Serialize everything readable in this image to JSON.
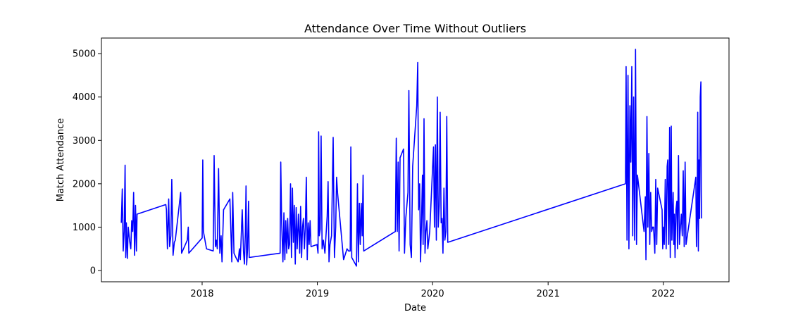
{
  "chart_data": {
    "type": "line",
    "title": "Attendance Over Time Without Outliers",
    "xlabel": "Date",
    "ylabel": "Match Attendance",
    "x_ticks": [
      "2018",
      "2019",
      "2020",
      "2021",
      "2022"
    ],
    "y_ticks": [
      0,
      1000,
      2000,
      3000,
      4000,
      5000
    ],
    "xlim": [
      "2017-02-16",
      "2022-07-28"
    ],
    "ylim": [
      -260,
      5360
    ],
    "grid": false,
    "line_color": "#0000ff",
    "series": [
      {
        "name": "",
        "points": [
          [
            "2017-04-20",
            1100
          ],
          [
            "2017-04-23",
            1880
          ],
          [
            "2017-04-26",
            450
          ],
          [
            "2017-04-29",
            900
          ],
          [
            "2017-05-02",
            2430
          ],
          [
            "2017-05-04",
            300
          ],
          [
            "2017-05-06",
            1100
          ],
          [
            "2017-05-09",
            280
          ],
          [
            "2017-05-12",
            1000
          ],
          [
            "2017-05-16",
            700
          ],
          [
            "2017-05-20",
            500
          ],
          [
            "2017-05-23",
            1150
          ],
          [
            "2017-05-26",
            900
          ],
          [
            "2017-05-29",
            1800
          ],
          [
            "2017-06-01",
            350
          ],
          [
            "2017-06-04",
            1500
          ],
          [
            "2017-06-07",
            450
          ],
          [
            "2017-06-09",
            1300
          ],
          [
            "2017-09-08",
            1520
          ],
          [
            "2017-09-10",
            1400
          ],
          [
            "2017-09-13",
            500
          ],
          [
            "2017-09-17",
            1650
          ],
          [
            "2017-09-20",
            550
          ],
          [
            "2017-09-24",
            800
          ],
          [
            "2017-09-27",
            2100
          ],
          [
            "2017-10-01",
            350
          ],
          [
            "2017-10-05",
            650
          ],
          [
            "2017-10-08",
            700
          ],
          [
            "2017-10-25",
            1800
          ],
          [
            "2017-10-28",
            400
          ],
          [
            "2017-11-15",
            700
          ],
          [
            "2017-11-18",
            1000
          ],
          [
            "2017-11-20",
            400
          ],
          [
            "2018-01-01",
            750
          ],
          [
            "2018-01-03",
            2550
          ],
          [
            "2018-01-05",
            900
          ],
          [
            "2018-01-15",
            500
          ],
          [
            "2018-02-05",
            450
          ],
          [
            "2018-02-08",
            2650
          ],
          [
            "2018-02-12",
            550
          ],
          [
            "2018-02-15",
            700
          ],
          [
            "2018-02-18",
            500
          ],
          [
            "2018-02-22",
            2350
          ],
          [
            "2018-02-26",
            400
          ],
          [
            "2018-03-02",
            800
          ],
          [
            "2018-03-05",
            200
          ],
          [
            "2018-03-10",
            1400
          ],
          [
            "2018-03-30",
            1650
          ],
          [
            "2018-04-02",
            900
          ],
          [
            "2018-04-05",
            200
          ],
          [
            "2018-04-08",
            1800
          ],
          [
            "2018-04-12",
            400
          ],
          [
            "2018-04-18",
            300
          ],
          [
            "2018-04-25",
            200
          ],
          [
            "2018-04-29",
            500
          ],
          [
            "2018-05-02",
            250
          ],
          [
            "2018-05-08",
            1400
          ],
          [
            "2018-05-12",
            450
          ],
          [
            "2018-05-15",
            150
          ],
          [
            "2018-05-18",
            900
          ],
          [
            "2018-05-20",
            1950
          ],
          [
            "2018-05-22",
            130
          ],
          [
            "2018-05-25",
            500
          ],
          [
            "2018-05-28",
            1600
          ],
          [
            "2018-05-30",
            300
          ],
          [
            "2018-09-05",
            400
          ],
          [
            "2018-09-07",
            2500
          ],
          [
            "2018-09-10",
            1100
          ],
          [
            "2018-09-14",
            200
          ],
          [
            "2018-09-17",
            1330
          ],
          [
            "2018-09-20",
            250
          ],
          [
            "2018-09-23",
            1150
          ],
          [
            "2018-09-26",
            400
          ],
          [
            "2018-09-29",
            1200
          ],
          [
            "2018-10-02",
            500
          ],
          [
            "2018-10-05",
            600
          ],
          [
            "2018-10-08",
            2000
          ],
          [
            "2018-10-11",
            300
          ],
          [
            "2018-10-14",
            1900
          ],
          [
            "2018-10-17",
            650
          ],
          [
            "2018-10-20",
            1500
          ],
          [
            "2018-10-23",
            150
          ],
          [
            "2018-10-26",
            1450
          ],
          [
            "2018-10-29",
            500
          ],
          [
            "2018-11-02",
            1300
          ],
          [
            "2018-11-06",
            400
          ],
          [
            "2018-11-09",
            1480
          ],
          [
            "2018-11-12",
            300
          ],
          [
            "2018-11-15",
            1000
          ],
          [
            "2018-11-18",
            1200
          ],
          [
            "2018-11-21",
            500
          ],
          [
            "2018-11-24",
            1000
          ],
          [
            "2018-11-27",
            2150
          ],
          [
            "2018-11-30",
            250
          ],
          [
            "2018-12-03",
            1100
          ],
          [
            "2018-12-06",
            600
          ],
          [
            "2018-12-09",
            1150
          ],
          [
            "2018-12-12",
            550
          ],
          [
            "2018-12-31",
            600
          ],
          [
            "2019-01-03",
            400
          ],
          [
            "2019-01-05",
            3200
          ],
          [
            "2019-01-07",
            800
          ],
          [
            "2019-01-10",
            950
          ],
          [
            "2019-01-13",
            3100
          ],
          [
            "2019-01-16",
            500
          ],
          [
            "2019-01-20",
            700
          ],
          [
            "2019-01-25",
            400
          ],
          [
            "2019-02-01",
            1250
          ],
          [
            "2019-02-04",
            2050
          ],
          [
            "2019-02-07",
            200
          ],
          [
            "2019-02-10",
            600
          ],
          [
            "2019-02-15",
            800
          ],
          [
            "2019-02-20",
            3070
          ],
          [
            "2019-02-24",
            300
          ],
          [
            "2019-02-28",
            1000
          ],
          [
            "2019-03-03",
            2150
          ],
          [
            "2019-03-06",
            1800
          ],
          [
            "2019-03-25",
            250
          ],
          [
            "2019-04-05",
            500
          ],
          [
            "2019-04-10",
            450
          ],
          [
            "2019-04-15",
            450
          ],
          [
            "2019-04-17",
            2850
          ],
          [
            "2019-04-20",
            300
          ],
          [
            "2019-05-05",
            100
          ],
          [
            "2019-05-08",
            2000
          ],
          [
            "2019-05-11",
            200
          ],
          [
            "2019-05-14",
            1550
          ],
          [
            "2019-05-17",
            600
          ],
          [
            "2019-05-20",
            1550
          ],
          [
            "2019-05-23",
            800
          ],
          [
            "2019-05-26",
            2200
          ],
          [
            "2019-05-28",
            450
          ],
          [
            "2019-09-05",
            900
          ],
          [
            "2019-09-08",
            3050
          ],
          [
            "2019-09-11",
            900
          ],
          [
            "2019-09-14",
            2500
          ],
          [
            "2019-09-17",
            450
          ],
          [
            "2019-09-20",
            2600
          ],
          [
            "2019-10-01",
            2800
          ],
          [
            "2019-10-04",
            400
          ],
          [
            "2019-10-08",
            1200
          ],
          [
            "2019-10-15",
            1800
          ],
          [
            "2019-10-18",
            4150
          ],
          [
            "2019-10-22",
            600
          ],
          [
            "2019-10-26",
            300
          ],
          [
            "2019-10-30",
            2400
          ],
          [
            "2019-11-12",
            3800
          ],
          [
            "2019-11-15",
            4800
          ],
          [
            "2019-11-18",
            1400
          ],
          [
            "2019-11-21",
            2000
          ],
          [
            "2019-11-24",
            200
          ],
          [
            "2019-11-27",
            1200
          ],
          [
            "2019-11-30",
            2200
          ],
          [
            "2019-12-02",
            600
          ],
          [
            "2019-12-05",
            3500
          ],
          [
            "2019-12-08",
            400
          ],
          [
            "2019-12-11",
            900
          ],
          [
            "2019-12-14",
            1150
          ],
          [
            "2019-12-17",
            500
          ],
          [
            "2019-12-20",
            700
          ],
          [
            "2019-12-23",
            900
          ],
          [
            "2020-01-04",
            2850
          ],
          [
            "2020-01-07",
            1000
          ],
          [
            "2020-01-10",
            2900
          ],
          [
            "2020-01-13",
            700
          ],
          [
            "2020-01-16",
            4000
          ],
          [
            "2020-01-19",
            1000
          ],
          [
            "2020-01-22",
            1500
          ],
          [
            "2020-01-25",
            3650
          ],
          [
            "2020-01-28",
            1100
          ],
          [
            "2020-01-31",
            1200
          ],
          [
            "2020-02-03",
            400
          ],
          [
            "2020-02-06",
            1900
          ],
          [
            "2020-02-09",
            700
          ],
          [
            "2020-02-12",
            900
          ],
          [
            "2020-02-15",
            3550
          ],
          [
            "2020-02-18",
            650
          ],
          [
            "2021-09-03",
            2000
          ],
          [
            "2021-09-05",
            4700
          ],
          [
            "2021-09-08",
            700
          ],
          [
            "2021-09-11",
            4500
          ],
          [
            "2021-09-14",
            500
          ],
          [
            "2021-09-17",
            3800
          ],
          [
            "2021-09-20",
            2500
          ],
          [
            "2021-09-23",
            4700
          ],
          [
            "2021-09-26",
            800
          ],
          [
            "2021-09-29",
            4000
          ],
          [
            "2021-10-02",
            700
          ],
          [
            "2021-10-05",
            5100
          ],
          [
            "2021-10-08",
            600
          ],
          [
            "2021-10-11",
            2200
          ],
          [
            "2021-11-01",
            900
          ],
          [
            "2021-11-05",
            1700
          ],
          [
            "2021-11-07",
            250
          ],
          [
            "2021-11-10",
            3550
          ],
          [
            "2021-11-13",
            1000
          ],
          [
            "2021-11-16",
            2700
          ],
          [
            "2021-11-19",
            600
          ],
          [
            "2021-11-22",
            1800
          ],
          [
            "2021-11-25",
            900
          ],
          [
            "2021-11-28",
            1000
          ],
          [
            "2021-12-01",
            1000
          ],
          [
            "2021-12-05",
            400
          ],
          [
            "2021-12-08",
            2100
          ],
          [
            "2021-12-11",
            600
          ],
          [
            "2021-12-14",
            1900
          ],
          [
            "2021-12-28",
            1400
          ],
          [
            "2021-12-30",
            500
          ],
          [
            "2022-01-02",
            1000
          ],
          [
            "2022-01-04",
            600
          ],
          [
            "2022-01-07",
            2100
          ],
          [
            "2022-01-10",
            500
          ],
          [
            "2022-01-13",
            2400
          ],
          [
            "2022-01-15",
            2550
          ],
          [
            "2022-01-18",
            600
          ],
          [
            "2022-01-21",
            3300
          ],
          [
            "2022-01-23",
            300
          ],
          [
            "2022-01-26",
            3330
          ],
          [
            "2022-01-28",
            700
          ],
          [
            "2022-02-01",
            1800
          ],
          [
            "2022-02-03",
            600
          ],
          [
            "2022-02-05",
            1300
          ],
          [
            "2022-02-07",
            300
          ],
          [
            "2022-02-10",
            1400
          ],
          [
            "2022-02-13",
            1600
          ],
          [
            "2022-02-15",
            500
          ],
          [
            "2022-02-18",
            2650
          ],
          [
            "2022-02-21",
            600
          ],
          [
            "2022-02-24",
            1000
          ],
          [
            "2022-02-27",
            1300
          ],
          [
            "2022-03-02",
            800
          ],
          [
            "2022-03-05",
            2300
          ],
          [
            "2022-03-08",
            550
          ],
          [
            "2022-03-11",
            2500
          ],
          [
            "2022-03-14",
            600
          ],
          [
            "2022-04-14",
            2150
          ],
          [
            "2022-04-16",
            550
          ],
          [
            "2022-04-18",
            1200
          ],
          [
            "2022-04-20",
            3650
          ],
          [
            "2022-04-22",
            450
          ],
          [
            "2022-04-24",
            2550
          ],
          [
            "2022-04-26",
            1200
          ],
          [
            "2022-04-28",
            4000
          ],
          [
            "2022-04-30",
            4350
          ],
          [
            "2022-05-01",
            1850
          ],
          [
            "2022-05-02",
            1200
          ]
        ]
      }
    ]
  }
}
